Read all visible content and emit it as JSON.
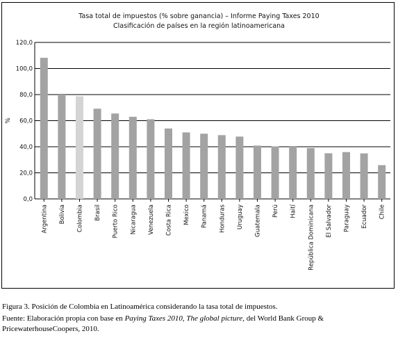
{
  "chart_data": {
    "type": "bar",
    "title": "Tasa total de impuestos (% sobre ganancia) – Informe Paying Taxes 2010",
    "subtitle": "Clasificación de países en la región latinoamericana",
    "xlabel": "",
    "ylabel": "%",
    "ylim": [
      0,
      120
    ],
    "yticks": [
      "0,0",
      "20,0",
      "40,0",
      "60,0",
      "80,0",
      "100,0",
      "120,0"
    ],
    "grid": true,
    "legend": "none",
    "categories": [
      "Argentina",
      "Bolivia",
      "Colombia",
      "Brasil",
      "Puerto Rico",
      "Nicaragua",
      "Venezuela",
      "Costa Rica",
      "Mexico",
      "Panamá",
      "Honduras",
      "Uruguay",
      "Guatemala",
      "Perú",
      "Haití",
      "República Dominicana",
      "El Salvador",
      "Paraguay",
      "Ecuador",
      "Chile"
    ],
    "values": [
      108.2,
      80.0,
      78.7,
      69.2,
      65.5,
      63.0,
      61.1,
      54.0,
      51.0,
      50.0,
      48.9,
      47.8,
      40.9,
      40.3,
      40.1,
      39.0,
      35.0,
      35.9,
      34.9,
      25.9
    ],
    "highlight_index": 2,
    "colors": {
      "bar": "#a3a3a3",
      "highlight": "#d4d4d4",
      "grid": "#000000"
    }
  },
  "caption": {
    "line1": "Figura 3. Posición de Colombia en Latinoamérica considerando la tasa total de impuestos.",
    "line2_prefix": "Fuente: Elaboración propia con base en ",
    "line2_italic1": "Paying Taxes 2010",
    "line2_sep": ", ",
    "line2_italic2": "The global picture",
    "line2_suffix": ", del World Bank Group &",
    "line3": "PricewaterhouseCoopers, 2010."
  }
}
